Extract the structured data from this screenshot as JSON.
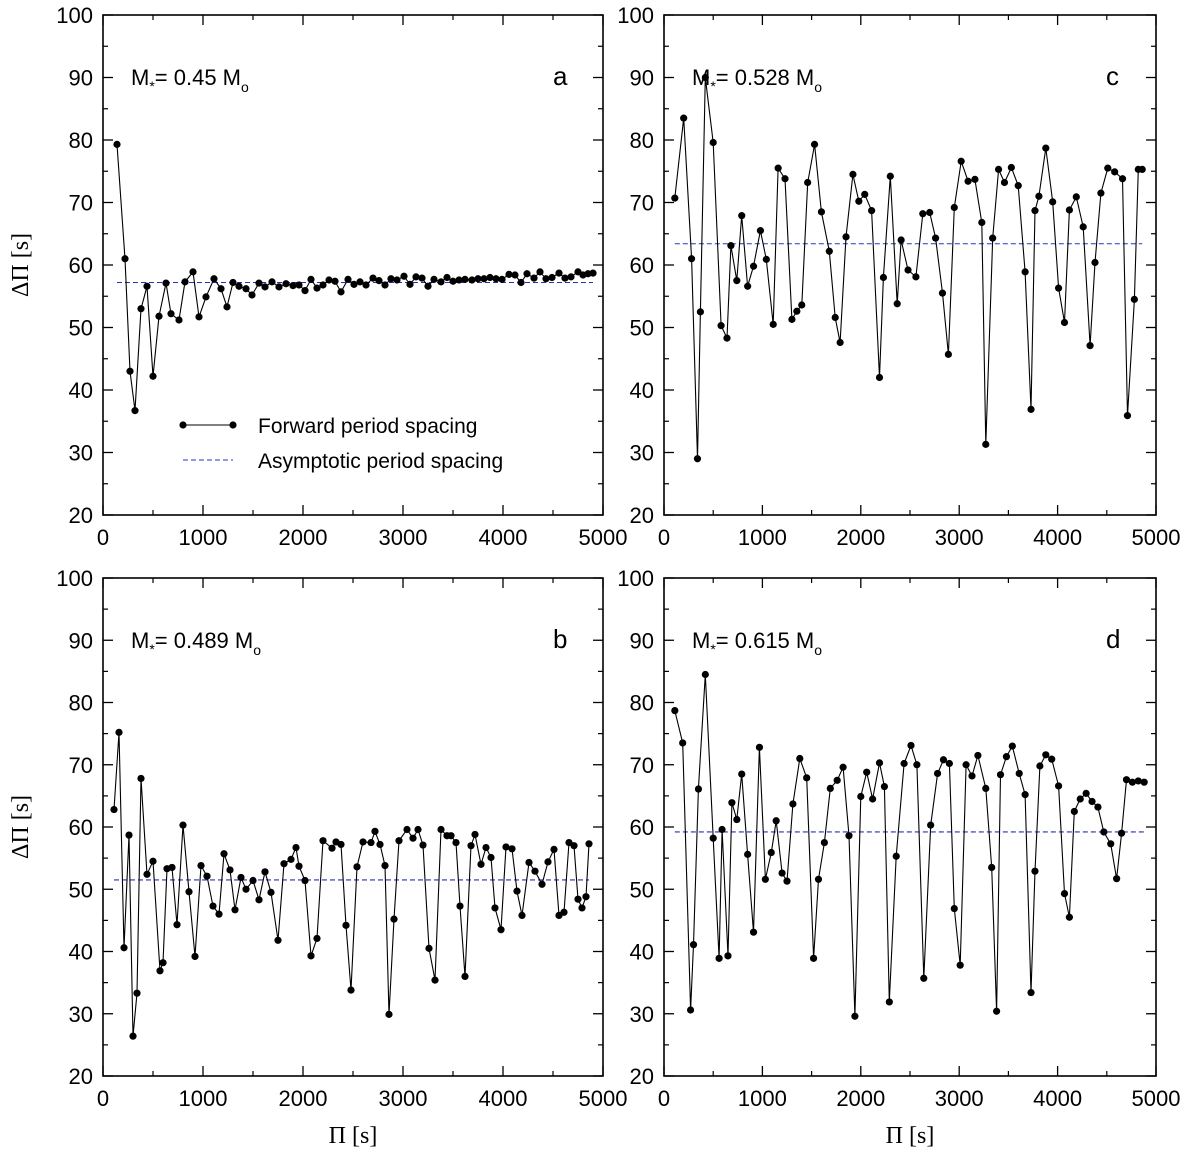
{
  "chart_data": [
    {
      "type": "line",
      "panel": "a",
      "label": "M*= 0.45 Mo",
      "xlabel": "Π [s]",
      "ylabel": "ΔΠ [s]",
      "xlim": [
        0,
        5000
      ],
      "ylim": [
        20,
        100
      ],
      "xticks": [
        0,
        1000,
        2000,
        3000,
        4000,
        5000
      ],
      "yticks": [
        20,
        30,
        40,
        50,
        60,
        70,
        80,
        90,
        100
      ],
      "asymptotic": 57.2,
      "series": [
        {
          "name": "Forward period spacing",
          "x": [
            140,
            220,
            270,
            320,
            380,
            440,
            500,
            560,
            630,
            680,
            760,
            820,
            900,
            960,
            1030,
            1110,
            1180,
            1240,
            1300,
            1360,
            1430,
            1490,
            1560,
            1620,
            1690,
            1760,
            1830,
            1900,
            1960,
            2020,
            2080,
            2140,
            2200,
            2260,
            2320,
            2380,
            2450,
            2510,
            2570,
            2630,
            2700,
            2760,
            2820,
            2880,
            2940,
            3010,
            3070,
            3130,
            3190,
            3250,
            3310,
            3380,
            3440,
            3500,
            3560,
            3620,
            3690,
            3750,
            3810,
            3870,
            3930,
            3990,
            4060,
            4120,
            4180,
            4240,
            4310,
            4370,
            4430,
            4490,
            4560,
            4620,
            4680,
            4750,
            4800,
            4850,
            4900
          ],
          "y": [
            79.3,
            61.0,
            43.0,
            36.7,
            53.0,
            56.6,
            42.2,
            51.8,
            57.1,
            52.2,
            51.2,
            57.3,
            58.9,
            51.7,
            54.9,
            57.8,
            56.2,
            53.3,
            57.2,
            56.6,
            56.2,
            55.2,
            57.1,
            56.5,
            57.3,
            56.5,
            57.0,
            56.7,
            56.8,
            55.9,
            57.7,
            56.3,
            56.8,
            57.6,
            57.4,
            55.7,
            57.7,
            56.9,
            57.3,
            56.8,
            57.9,
            57.5,
            56.8,
            57.8,
            57.6,
            58.2,
            56.9,
            58.1,
            57.9,
            56.6,
            57.7,
            57.3,
            58.0,
            57.4,
            57.6,
            57.7,
            57.6,
            57.8,
            57.8,
            58.0,
            57.8,
            57.7,
            58.5,
            58.4,
            57.2,
            58.6,
            57.9,
            58.9,
            57.8,
            58.0,
            58.7,
            57.9,
            58.1,
            58.9,
            58.4,
            58.6,
            58.7
          ]
        }
      ],
      "legend": {
        "position": "lower-center",
        "entries": [
          "Forward period spacing",
          "Asymptotic period spacing"
        ]
      }
    },
    {
      "type": "line",
      "panel": "b",
      "label": "M*= 0.489 Mo",
      "xlabel": "Π [s]",
      "ylabel": "ΔΠ [s]",
      "xlim": [
        0,
        5000
      ],
      "ylim": [
        20,
        100
      ],
      "xticks": [
        0,
        1000,
        2000,
        3000,
        4000,
        5000
      ],
      "yticks": [
        20,
        30,
        40,
        50,
        60,
        70,
        80,
        90,
        100
      ],
      "asymptotic": 51.5,
      "series": [
        {
          "name": "Forward period spacing",
          "x": [
            110,
            160,
            210,
            260,
            300,
            340,
            380,
            440,
            500,
            570,
            600,
            640,
            690,
            740,
            800,
            860,
            920,
            980,
            1040,
            1100,
            1160,
            1210,
            1270,
            1320,
            1380,
            1430,
            1500,
            1560,
            1620,
            1680,
            1750,
            1810,
            1880,
            1930,
            1960,
            2020,
            2080,
            2140,
            2200,
            2290,
            2330,
            2380,
            2430,
            2480,
            2540,
            2600,
            2680,
            2720,
            2770,
            2820,
            2860,
            2910,
            2960,
            3040,
            3100,
            3150,
            3200,
            3260,
            3320,
            3380,
            3440,
            3480,
            3530,
            3570,
            3620,
            3680,
            3720,
            3780,
            3830,
            3880,
            3920,
            3980,
            4030,
            4090,
            4140,
            4190,
            4260,
            4320,
            4390,
            4450,
            4510,
            4560,
            4610,
            4660,
            4710,
            4750,
            4790,
            4830,
            4860
          ],
          "y": [
            62.8,
            75.2,
            40.6,
            58.7,
            26.4,
            33.3,
            67.8,
            52.4,
            54.5,
            36.9,
            38.2,
            53.3,
            53.5,
            44.3,
            60.3,
            49.6,
            39.2,
            53.8,
            52.1,
            47.3,
            46.0,
            55.7,
            53.1,
            46.7,
            51.9,
            50.0,
            51.4,
            48.3,
            52.8,
            49.5,
            41.8,
            54.1,
            54.8,
            56.7,
            53.7,
            51.4,
            39.3,
            42.1,
            57.8,
            56.6,
            57.6,
            57.2,
            44.2,
            33.8,
            53.6,
            57.6,
            57.5,
            59.3,
            57.2,
            53.8,
            29.9,
            45.2,
            57.8,
            59.6,
            58.2,
            59.6,
            57.1,
            40.5,
            35.4,
            59.6,
            58.6,
            58.6,
            57.5,
            47.3,
            36.0,
            57.0,
            58.8,
            54.0,
            56.7,
            55.1,
            47.0,
            43.5,
            56.8,
            56.5,
            49.7,
            45.8,
            54.3,
            52.9,
            50.8,
            54.4,
            56.4,
            45.8,
            46.3,
            57.5,
            57.0,
            48.4,
            47.0,
            48.8,
            57.3
          ]
        }
      ]
    },
    {
      "type": "line",
      "panel": "c",
      "label": "M*= 0.528 Mo",
      "xlabel": "Π [s]",
      "ylabel": "ΔΠ [s]",
      "xlim": [
        0,
        5000
      ],
      "ylim": [
        20,
        100
      ],
      "xticks": [
        0,
        1000,
        2000,
        3000,
        4000,
        5000
      ],
      "yticks": [
        20,
        30,
        40,
        50,
        60,
        70,
        80,
        90,
        100
      ],
      "asymptotic": 63.4,
      "series": [
        {
          "name": "Forward period spacing",
          "x": [
            110,
            200,
            280,
            340,
            370,
            420,
            500,
            580,
            640,
            680,
            740,
            790,
            850,
            910,
            980,
            1040,
            1110,
            1160,
            1230,
            1300,
            1350,
            1400,
            1460,
            1530,
            1600,
            1680,
            1740,
            1790,
            1850,
            1920,
            1980,
            2040,
            2110,
            2190,
            2230,
            2300,
            2370,
            2410,
            2480,
            2560,
            2630,
            2700,
            2760,
            2830,
            2890,
            2950,
            3020,
            3090,
            3160,
            3230,
            3270,
            3340,
            3400,
            3460,
            3530,
            3600,
            3670,
            3730,
            3770,
            3810,
            3880,
            3950,
            4010,
            4070,
            4120,
            4190,
            4260,
            4330,
            4380,
            4440,
            4510,
            4580,
            4660,
            4710,
            4780,
            4820,
            4860
          ],
          "y": [
            70.7,
            83.5,
            61.0,
            29.0,
            52.5,
            90.0,
            79.6,
            50.3,
            48.3,
            63.1,
            57.5,
            67.9,
            56.6,
            59.8,
            65.5,
            60.9,
            50.5,
            75.5,
            73.8,
            51.3,
            52.6,
            53.6,
            73.2,
            79.3,
            68.5,
            62.2,
            51.6,
            47.6,
            64.5,
            74.5,
            70.2,
            71.3,
            68.7,
            42.0,
            58.0,
            74.2,
            53.8,
            64.0,
            59.2,
            58.1,
            68.2,
            68.4,
            64.3,
            55.5,
            45.7,
            69.2,
            76.6,
            73.4,
            73.7,
            66.8,
            31.3,
            64.3,
            75.3,
            73.2,
            75.6,
            72.7,
            58.9,
            36.9,
            68.7,
            71.0,
            78.7,
            70.1,
            56.3,
            50.8,
            68.8,
            70.9,
            66.1,
            47.1,
            60.4,
            71.5,
            75.5,
            74.9,
            73.8,
            35.9,
            54.5,
            75.3,
            75.3
          ]
        }
      ]
    },
    {
      "type": "line",
      "panel": "d",
      "label": "M*= 0.615 Mo",
      "xlabel": "Π [s]",
      "ylabel": "ΔΠ [s]",
      "xlim": [
        0,
        5000
      ],
      "ylim": [
        20,
        100
      ],
      "xticks": [
        0,
        1000,
        2000,
        3000,
        4000,
        5000
      ],
      "yticks": [
        20,
        30,
        40,
        50,
        60,
        70,
        80,
        90,
        100
      ],
      "asymptotic": 59.2,
      "series": [
        {
          "name": "Forward period spacing",
          "x": [
            110,
            190,
            270,
            300,
            350,
            420,
            500,
            560,
            590,
            650,
            690,
            740,
            790,
            850,
            910,
            970,
            1030,
            1090,
            1140,
            1200,
            1250,
            1310,
            1380,
            1450,
            1520,
            1570,
            1630,
            1690,
            1760,
            1820,
            1880,
            1940,
            2000,
            2060,
            2120,
            2190,
            2240,
            2290,
            2360,
            2440,
            2510,
            2570,
            2640,
            2710,
            2780,
            2840,
            2900,
            2950,
            3010,
            3070,
            3130,
            3190,
            3270,
            3330,
            3380,
            3420,
            3480,
            3540,
            3610,
            3670,
            3730,
            3770,
            3820,
            3880,
            3940,
            4010,
            4070,
            4120,
            4170,
            4230,
            4290,
            4350,
            4410,
            4470,
            4540,
            4600,
            4650,
            4700,
            4760,
            4820,
            4880
          ],
          "y": [
            78.7,
            73.5,
            30.6,
            41.1,
            66.1,
            84.5,
            58.2,
            38.9,
            59.6,
            39.3,
            63.9,
            61.2,
            68.5,
            55.6,
            43.1,
            72.8,
            51.6,
            55.9,
            61.0,
            52.6,
            51.3,
            63.7,
            71.0,
            67.9,
            38.9,
            51.6,
            57.5,
            66.2,
            67.5,
            69.6,
            58.6,
            29.6,
            64.9,
            68.8,
            64.5,
            70.3,
            66.5,
            31.9,
            55.3,
            70.2,
            73.1,
            70.0,
            35.7,
            60.3,
            68.6,
            70.8,
            70.2,
            46.9,
            37.8,
            70.0,
            68.2,
            71.5,
            66.2,
            53.5,
            30.4,
            68.4,
            71.3,
            73.0,
            68.6,
            65.2,
            33.4,
            52.9,
            69.8,
            71.6,
            70.9,
            66.6,
            49.3,
            45.5,
            62.5,
            64.5,
            65.4,
            64.1,
            63.2,
            59.2,
            57.3,
            51.7,
            59.0,
            67.6,
            67.2,
            67.4,
            67.2
          ]
        }
      ]
    }
  ]
}
